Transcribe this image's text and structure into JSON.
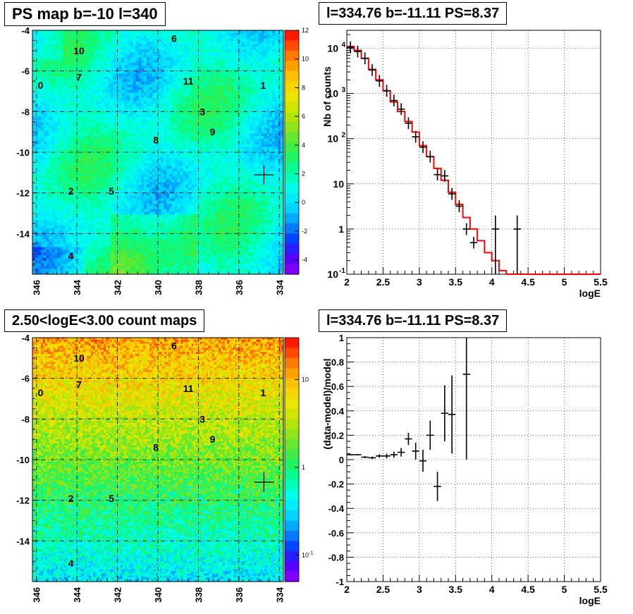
{
  "panels": {
    "ps_map_title": "PS map b=-10 l=340",
    "spectrum_title": "l=334.76 b=-11.11 PS=8.37",
    "count_map_title": "2.50<logE<3.00 count maps",
    "residual_title": "l=334.76 b=-11.11 PS=8.37"
  },
  "colors": {
    "model_line": "#ff0000",
    "data_points": "#000000",
    "grid": "#000000"
  },
  "chart_data": [
    {
      "type": "heatmap",
      "title": "PS map b=-10 l=340",
      "x_ticks": [
        "346",
        "344",
        "342",
        "340",
        "338",
        "336",
        "334"
      ],
      "y_ticks": [
        "-4",
        "-6",
        "-8",
        "-10",
        "-12",
        "-14"
      ],
      "xlim": [
        346.2,
        333.8
      ],
      "ylim": [
        -16,
        -4
      ],
      "colorbar": {
        "min": -5,
        "max": 12,
        "ticks": [
          "-4",
          "-2",
          "0",
          "2",
          "4",
          "6",
          "8",
          "10",
          "12"
        ],
        "tick_values": [
          -4,
          -2,
          0,
          2,
          4,
          6,
          8,
          10,
          12
        ]
      },
      "sources": [
        {
          "label": "0",
          "l": 345.8,
          "b": -6.7
        },
        {
          "label": "1",
          "l": 334.8,
          "b": -6.7
        },
        {
          "label": "2",
          "l": 344.3,
          "b": -11.9
        },
        {
          "label": "3",
          "l": 337.8,
          "b": -8.0
        },
        {
          "label": "4",
          "l": 344.3,
          "b": -15.1
        },
        {
          "label": "5",
          "l": 342.3,
          "b": -11.9
        },
        {
          "label": "6",
          "l": 339.2,
          "b": -4.4
        },
        {
          "label": "7",
          "l": 343.9,
          "b": -6.3
        },
        {
          "label": "8",
          "l": 340.1,
          "b": -9.4
        },
        {
          "label": "9",
          "l": 337.3,
          "b": -9.0
        },
        {
          "label": "10",
          "l": 343.9,
          "b": -5.0
        },
        {
          "label": "11",
          "l": 338.5,
          "b": -6.5
        }
      ],
      "marker": {
        "l": 334.76,
        "b": -11.11
      }
    },
    {
      "type": "line",
      "title": "l=334.76 b=-11.11 PS=8.37",
      "xlabel": "logE",
      "ylabel": "Nb of counts",
      "y_scale": "log",
      "xlim": [
        2,
        5.5
      ],
      "ylim": [
        0.1,
        25000
      ],
      "x_ticks": [
        "2",
        "2.5",
        "3",
        "3.5",
        "4",
        "4.5",
        "5",
        "5.5"
      ],
      "y_ticks": [
        "10^-1",
        "1",
        "10",
        "10^2",
        "10^3",
        "10^4"
      ],
      "grid": true,
      "model_series": {
        "edges": [
          2.0,
          2.1,
          2.2,
          2.3,
          2.4,
          2.5,
          2.6,
          2.7,
          2.8,
          2.9,
          3.0,
          3.1,
          3.2,
          3.3,
          3.4,
          3.5,
          3.6,
          3.7,
          3.8,
          3.9,
          4.0,
          4.1,
          4.2,
          4.3,
          4.4,
          4.5,
          4.6,
          4.7,
          4.8,
          4.9,
          5.0,
          5.1,
          5.2,
          5.3,
          5.4,
          5.5
        ],
        "values": [
          11000,
          9000,
          6000,
          3400,
          2000,
          1150,
          650,
          400,
          240,
          140,
          70,
          40,
          22,
          12,
          6.5,
          3.5,
          1.8,
          1.0,
          0.55,
          0.3,
          0.2,
          0.12,
          0.1,
          0.1,
          0.1,
          0.1,
          0.1,
          0.1,
          0.1,
          0.1,
          0.1,
          0.1,
          0.1,
          0.1,
          0.1
        ]
      },
      "data_points": [
        {
          "x": 2.05,
          "y": 10500
        },
        {
          "x": 2.15,
          "y": 8500
        },
        {
          "x": 2.25,
          "y": 6000
        },
        {
          "x": 2.35,
          "y": 3300
        },
        {
          "x": 2.45,
          "y": 1900
        },
        {
          "x": 2.55,
          "y": 1150
        },
        {
          "x": 2.65,
          "y": 700
        },
        {
          "x": 2.75,
          "y": 450
        },
        {
          "x": 2.85,
          "y": 220
        },
        {
          "x": 2.95,
          "y": 110
        },
        {
          "x": 3.05,
          "y": 65
        },
        {
          "x": 3.15,
          "y": 40
        },
        {
          "x": 3.25,
          "y": 16
        },
        {
          "x": 3.35,
          "y": 15
        },
        {
          "x": 3.45,
          "y": 6
        },
        {
          "x": 3.55,
          "y": 3.2
        },
        {
          "x": 3.65,
          "y": 1.0
        },
        {
          "x": 3.75,
          "y": 0.5
        },
        {
          "x": 4.05,
          "y": 1,
          "err_lo": 0.1,
          "err_hi": 2
        },
        {
          "x": 4.35,
          "y": 1,
          "err_lo": 0.1,
          "err_hi": 2
        }
      ]
    },
    {
      "type": "heatmap",
      "title": "2.50<logE<3.00 count maps",
      "x_ticks": [
        "346",
        "344",
        "342",
        "340",
        "338",
        "336",
        "334"
      ],
      "y_ticks": [
        "-4",
        "-6",
        "-8",
        "-10",
        "-12",
        "-14"
      ],
      "xlim": [
        346.2,
        333.8
      ],
      "ylim": [
        -16,
        -4
      ],
      "colorbar": {
        "scale": "log",
        "min": 0.05,
        "max": 30,
        "ticks": [
          "10",
          "1",
          "10^-1"
        ],
        "tick_values": [
          10,
          1,
          0.1
        ]
      },
      "sources_ref": 0,
      "marker": {
        "l": 334.76,
        "b": -11.11
      }
    },
    {
      "type": "scatter",
      "title": "l=334.76 b=-11.11 PS=8.37",
      "xlabel": "logE",
      "ylabel": "(data-model)/model",
      "xlim": [
        2,
        5.5
      ],
      "ylim": [
        -1,
        1
      ],
      "x_ticks": [
        "2",
        "2.5",
        "3",
        "3.5",
        "4",
        "4.5",
        "5",
        "5.5"
      ],
      "y_ticks": [
        "-1",
        "-0.8",
        "-0.6",
        "-0.4",
        "-0.2",
        "0",
        "0.2",
        "0.4",
        "0.6",
        "0.8",
        "1"
      ],
      "grid": true,
      "points": [
        {
          "x": 2.05,
          "y": 0.04,
          "err": 0.005
        },
        {
          "x": 2.15,
          "y": 0.04,
          "err": 0.005
        },
        {
          "x": 2.25,
          "y": 0.02,
          "err": 0.008
        },
        {
          "x": 2.35,
          "y": 0.015,
          "err": 0.01
        },
        {
          "x": 2.45,
          "y": 0.03,
          "err": 0.015
        },
        {
          "x": 2.55,
          "y": 0.03,
          "err": 0.02
        },
        {
          "x": 2.65,
          "y": 0.04,
          "err": 0.025
        },
        {
          "x": 2.75,
          "y": 0.06,
          "err": 0.035
        },
        {
          "x": 2.85,
          "y": 0.17,
          "err": 0.05
        },
        {
          "x": 2.95,
          "y": 0.07,
          "err": 0.07
        },
        {
          "x": 3.05,
          "y": -0.01,
          "err": 0.09
        },
        {
          "x": 3.15,
          "y": 0.2,
          "err": 0.12
        },
        {
          "x": 3.25,
          "y": -0.22,
          "err": 0.12
        },
        {
          "x": 3.35,
          "y": 0.38,
          "err": 0.23
        },
        {
          "x": 3.45,
          "y": 0.37,
          "err": 0.32
        },
        {
          "x": 3.65,
          "y": 0.7,
          "err": 0.7
        }
      ]
    }
  ]
}
